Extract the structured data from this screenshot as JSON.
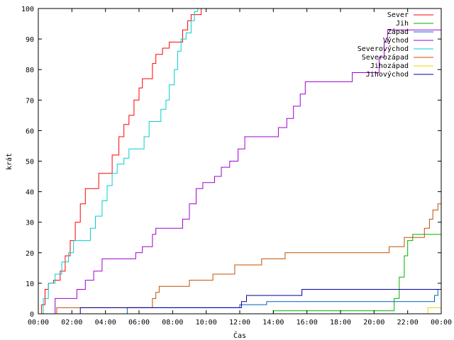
{
  "chart_data": {
    "type": "line",
    "title": "",
    "xlabel": "Čas",
    "ylabel": "krát",
    "xlim": [
      0,
      24
    ],
    "ylim": [
      0,
      100
    ],
    "x_ticks": [
      {
        "v": 0,
        "label": "00:00"
      },
      {
        "v": 2,
        "label": "02:00"
      },
      {
        "v": 4,
        "label": "04:00"
      },
      {
        "v": 6,
        "label": "06:00"
      },
      {
        "v": 8,
        "label": "08:00"
      },
      {
        "v": 10,
        "label": "10:00"
      },
      {
        "v": 12,
        "label": "12:00"
      },
      {
        "v": 14,
        "label": "14:00"
      },
      {
        "v": 16,
        "label": "16:00"
      },
      {
        "v": 18,
        "label": "18:00"
      },
      {
        "v": 20,
        "label": "20:00"
      },
      {
        "v": 22,
        "label": "22:00"
      },
      {
        "v": 24,
        "label": "00:00"
      }
    ],
    "y_ticks": [
      0,
      10,
      20,
      30,
      40,
      50,
      60,
      70,
      80,
      90,
      100
    ],
    "grid": false,
    "legend_position": "top-right",
    "step": true,
    "series": [
      {
        "name": "Sever",
        "color": "#ff0000",
        "points": [
          [
            0,
            0
          ],
          [
            0.2,
            3
          ],
          [
            0.4,
            8
          ],
          [
            0.6,
            10
          ],
          [
            0.9,
            11
          ],
          [
            1.3,
            14
          ],
          [
            1.6,
            19
          ],
          [
            1.9,
            24
          ],
          [
            2.2,
            30
          ],
          [
            2.5,
            36
          ],
          [
            2.8,
            41
          ],
          [
            3.3,
            41
          ],
          [
            3.6,
            46
          ],
          [
            4.1,
            46
          ],
          [
            4.4,
            52
          ],
          [
            4.8,
            58
          ],
          [
            5.1,
            62
          ],
          [
            5.4,
            65
          ],
          [
            5.7,
            70
          ],
          [
            6.0,
            74
          ],
          [
            6.2,
            77
          ],
          [
            6.5,
            77
          ],
          [
            6.8,
            82
          ],
          [
            7.0,
            85
          ],
          [
            7.4,
            87
          ],
          [
            7.8,
            89
          ],
          [
            8.3,
            89
          ],
          [
            8.6,
            93
          ],
          [
            8.9,
            96
          ],
          [
            9.1,
            98
          ],
          [
            9.6,
            98
          ],
          [
            9.7,
            100
          ]
        ]
      },
      {
        "name": "Jih",
        "color": "#00b000",
        "points": [
          [
            0,
            0
          ],
          [
            13.8,
            0
          ],
          [
            14.0,
            1
          ],
          [
            21.0,
            1
          ],
          [
            21.2,
            5
          ],
          [
            21.5,
            12
          ],
          [
            21.8,
            19
          ],
          [
            22.0,
            24
          ],
          [
            22.3,
            26
          ],
          [
            24.0,
            26
          ],
          [
            24.0,
            27
          ]
        ]
      },
      {
        "name": "Západ",
        "color": "#0060c0",
        "points": [
          [
            0,
            0
          ],
          [
            5.2,
            0
          ],
          [
            5.3,
            2
          ],
          [
            11.9,
            2
          ],
          [
            12.0,
            3
          ],
          [
            13.5,
            3
          ],
          [
            13.6,
            4
          ],
          [
            23.5,
            4
          ],
          [
            23.6,
            6
          ],
          [
            23.8,
            8
          ],
          [
            24.0,
            8
          ]
        ]
      },
      {
        "name": "Východ",
        "color": "#a000d0",
        "points": [
          [
            0,
            0
          ],
          [
            0.8,
            0
          ],
          [
            1.0,
            5
          ],
          [
            2.0,
            5
          ],
          [
            2.3,
            8
          ],
          [
            2.8,
            11
          ],
          [
            3.3,
            14
          ],
          [
            3.8,
            18
          ],
          [
            5.5,
            18
          ],
          [
            5.8,
            20
          ],
          [
            6.2,
            22
          ],
          [
            6.8,
            26
          ],
          [
            7.0,
            28
          ],
          [
            8.4,
            28
          ],
          [
            8.6,
            31
          ],
          [
            9.0,
            36
          ],
          [
            9.4,
            41
          ],
          [
            9.8,
            43
          ],
          [
            10.5,
            45
          ],
          [
            10.9,
            48
          ],
          [
            11.4,
            50
          ],
          [
            11.9,
            54
          ],
          [
            12.3,
            58
          ],
          [
            14.0,
            58
          ],
          [
            14.3,
            61
          ],
          [
            14.8,
            64
          ],
          [
            15.2,
            68
          ],
          [
            15.6,
            72
          ],
          [
            15.9,
            76
          ],
          [
            18.5,
            76
          ],
          [
            18.7,
            79
          ],
          [
            20.1,
            79
          ],
          [
            20.3,
            84
          ],
          [
            20.6,
            89
          ],
          [
            20.8,
            93
          ],
          [
            24.0,
            93
          ]
        ]
      },
      {
        "name": "Severovýchod",
        "color": "#00d0d0",
        "points": [
          [
            0,
            0
          ],
          [
            0.3,
            5
          ],
          [
            0.6,
            10
          ],
          [
            1.0,
            13
          ],
          [
            1.4,
            17
          ],
          [
            1.8,
            20
          ],
          [
            2.1,
            24
          ],
          [
            2.9,
            24
          ],
          [
            3.1,
            28
          ],
          [
            3.4,
            32
          ],
          [
            3.8,
            37
          ],
          [
            4.1,
            42
          ],
          [
            4.4,
            46
          ],
          [
            4.7,
            49
          ],
          [
            5.1,
            51
          ],
          [
            5.4,
            54
          ],
          [
            6.1,
            54
          ],
          [
            6.3,
            58
          ],
          [
            6.6,
            63
          ],
          [
            7.1,
            63
          ],
          [
            7.3,
            67
          ],
          [
            7.6,
            70
          ],
          [
            7.8,
            75
          ],
          [
            8.1,
            80
          ],
          [
            8.3,
            86
          ],
          [
            8.5,
            90
          ],
          [
            8.8,
            92
          ],
          [
            9.1,
            96
          ],
          [
            9.3,
            99
          ],
          [
            9.5,
            100
          ],
          [
            10.0,
            100
          ]
        ]
      },
      {
        "name": "Severozápad",
        "color": "#c05000",
        "points": [
          [
            0,
            0
          ],
          [
            1.0,
            0
          ],
          [
            1.1,
            2
          ],
          [
            6.7,
            2
          ],
          [
            6.8,
            5
          ],
          [
            7.0,
            7
          ],
          [
            7.2,
            9
          ],
          [
            8.7,
            9
          ],
          [
            9.0,
            11
          ],
          [
            10.0,
            11
          ],
          [
            10.4,
            13
          ],
          [
            11.4,
            13
          ],
          [
            11.7,
            16
          ],
          [
            13.0,
            16
          ],
          [
            13.3,
            18
          ],
          [
            14.3,
            18
          ],
          [
            14.7,
            20
          ],
          [
            20.6,
            20
          ],
          [
            20.9,
            22
          ],
          [
            21.6,
            22
          ],
          [
            21.8,
            25
          ],
          [
            22.8,
            25
          ],
          [
            23.0,
            28
          ],
          [
            23.3,
            31
          ],
          [
            23.5,
            34
          ],
          [
            23.8,
            36
          ],
          [
            24.0,
            41
          ]
        ]
      },
      {
        "name": "Jihozápad",
        "color": "#e8d800",
        "points": [
          [
            0,
            0
          ],
          [
            23.1,
            0
          ],
          [
            23.2,
            2
          ],
          [
            24.0,
            2
          ]
        ]
      },
      {
        "name": "Jihovýchod",
        "color": "#0000a0",
        "points": [
          [
            0,
            0
          ],
          [
            2.4,
            0
          ],
          [
            2.5,
            2
          ],
          [
            12.0,
            2
          ],
          [
            12.1,
            4
          ],
          [
            12.4,
            6
          ],
          [
            15.5,
            6
          ],
          [
            15.7,
            8
          ],
          [
            24.0,
            8
          ]
        ]
      }
    ]
  }
}
